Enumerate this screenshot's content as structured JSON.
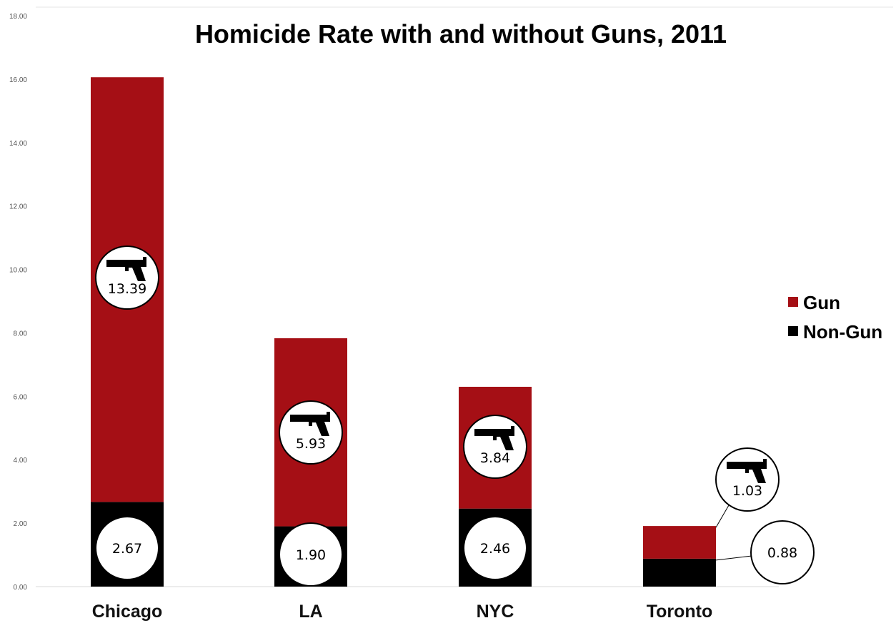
{
  "chart_data": {
    "type": "bar",
    "stacked": true,
    "title": "Homicide Rate with and without Guns, 2011",
    "categories": [
      "Chicago",
      "LA",
      "NYC",
      "Toronto"
    ],
    "series": [
      {
        "name": "Non-Gun",
        "values": [
          2.67,
          1.9,
          2.46,
          0.88
        ],
        "labels": [
          "2.67",
          "1.90",
          "2.46",
          "0.88"
        ],
        "color": "#000000"
      },
      {
        "name": "Gun",
        "values": [
          13.39,
          5.93,
          3.84,
          1.03
        ],
        "labels": [
          "13.39",
          "5.93",
          "3.84",
          "1.03"
        ],
        "color": "#a50f15"
      }
    ],
    "ylim": [
      0,
      18
    ],
    "yticks": [
      "0.00",
      "2.00",
      "4.00",
      "6.00",
      "8.00",
      "10.00",
      "12.00",
      "14.00",
      "16.00",
      "18.00"
    ],
    "legend": {
      "position": "right",
      "order": [
        "Gun",
        "Non-Gun"
      ]
    },
    "grid": false,
    "label_icon": "pistol-icon"
  }
}
